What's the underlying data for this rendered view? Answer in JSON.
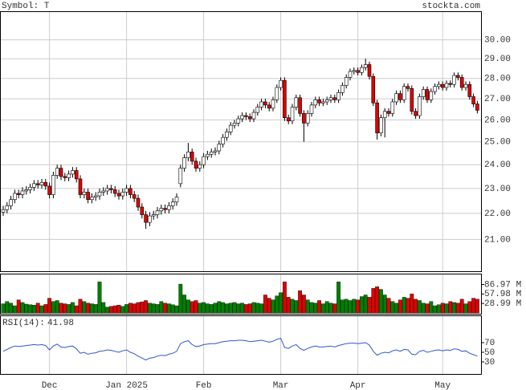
{
  "chart_data": {
    "type": "candlestick",
    "symbol_label": "Symbol: T",
    "site": "stockta.com",
    "log_scale": true,
    "grid": true,
    "up_color": "#ffffff",
    "down_color": "#e00000",
    "ylim": [
      19.84,
      31.57
    ],
    "yticks": [
      {
        "value": 21,
        "label": "21.00"
      },
      {
        "value": 22,
        "label": "22.00"
      },
      {
        "value": 23,
        "label": "23.00"
      },
      {
        "value": 24,
        "label": "24.00"
      },
      {
        "value": 25,
        "label": "25.00"
      },
      {
        "value": 26,
        "label": "26.00"
      },
      {
        "value": 27,
        "label": "27.00"
      },
      {
        "value": 28,
        "label": "28.00"
      },
      {
        "value": 29,
        "label": "29.00"
      },
      {
        "value": 30,
        "label": "30.00"
      }
    ],
    "xticks": [
      {
        "value": 12,
        "label": "Dec"
      },
      {
        "value": 32,
        "label": "Jan 2025"
      },
      {
        "value": 52,
        "label": "Feb"
      },
      {
        "value": 72,
        "label": "Mar"
      },
      {
        "value": 92,
        "label": "Apr"
      },
      {
        "value": 114,
        "label": "May"
      }
    ],
    "ohlc": [
      [
        22.05,
        22.3,
        21.9,
        22.15
      ],
      [
        22.15,
        22.45,
        22.0,
        22.3
      ],
      [
        22.3,
        22.7,
        22.15,
        22.55
      ],
      [
        22.55,
        22.95,
        22.4,
        22.8
      ],
      [
        22.8,
        22.95,
        22.6,
        22.75
      ],
      [
        22.75,
        23.05,
        22.6,
        22.9
      ],
      [
        22.9,
        23.1,
        22.75,
        22.95
      ],
      [
        22.95,
        23.2,
        22.8,
        23.05
      ],
      [
        23.05,
        23.35,
        22.9,
        23.2
      ],
      [
        23.2,
        23.35,
        23.0,
        23.15
      ],
      [
        23.15,
        23.4,
        23.0,
        23.25
      ],
      [
        23.25,
        23.4,
        22.95,
        23.1
      ],
      [
        23.1,
        23.25,
        22.6,
        22.75
      ],
      [
        22.75,
        23.7,
        22.6,
        23.55
      ],
      [
        23.55,
        24.0,
        23.4,
        23.85
      ],
      [
        23.85,
        24.0,
        23.35,
        23.5
      ],
      [
        23.5,
        23.65,
        23.3,
        23.45
      ],
      [
        23.45,
        23.75,
        23.3,
        23.6
      ],
      [
        23.6,
        23.9,
        23.45,
        23.75
      ],
      [
        23.75,
        23.9,
        23.25,
        23.4
      ],
      [
        23.4,
        23.55,
        22.6,
        22.75
      ],
      [
        22.75,
        23.0,
        22.6,
        22.85
      ],
      [
        22.85,
        23.0,
        22.4,
        22.55
      ],
      [
        22.55,
        22.8,
        22.4,
        22.65
      ],
      [
        22.65,
        22.85,
        22.5,
        22.7
      ],
      [
        22.7,
        23.0,
        22.55,
        22.85
      ],
      [
        22.85,
        23.05,
        22.7,
        22.9
      ],
      [
        22.9,
        23.15,
        22.75,
        23.0
      ],
      [
        23.0,
        23.15,
        22.8,
        22.95
      ],
      [
        22.95,
        23.1,
        22.65,
        22.8
      ],
      [
        22.8,
        22.95,
        22.55,
        22.7
      ],
      [
        22.7,
        23.0,
        22.55,
        22.85
      ],
      [
        22.85,
        23.15,
        22.7,
        23.0
      ],
      [
        23.0,
        23.15,
        22.6,
        22.75
      ],
      [
        22.75,
        22.9,
        22.45,
        22.6
      ],
      [
        22.6,
        22.75,
        22.1,
        22.25
      ],
      [
        22.25,
        22.4,
        21.8,
        21.95
      ],
      [
        21.95,
        22.1,
        21.4,
        21.65
      ],
      [
        21.65,
        22.05,
        21.5,
        21.9
      ],
      [
        21.9,
        22.1,
        21.75,
        21.95
      ],
      [
        21.95,
        22.25,
        21.8,
        22.1
      ],
      [
        22.1,
        22.35,
        21.95,
        22.2
      ],
      [
        22.2,
        22.35,
        22.0,
        22.15
      ],
      [
        22.15,
        22.45,
        22.0,
        22.3
      ],
      [
        22.3,
        22.6,
        22.15,
        22.45
      ],
      [
        22.45,
        22.8,
        22.3,
        22.65
      ],
      [
        23.2,
        24.0,
        23.05,
        23.85
      ],
      [
        23.85,
        24.45,
        23.7,
        24.3
      ],
      [
        24.3,
        24.95,
        24.15,
        24.55
      ],
      [
        24.55,
        24.7,
        24.0,
        24.15
      ],
      [
        24.15,
        24.3,
        23.7,
        23.85
      ],
      [
        23.85,
        24.15,
        23.7,
        24.0
      ],
      [
        24.0,
        24.5,
        23.85,
        24.35
      ],
      [
        24.35,
        24.6,
        24.2,
        24.45
      ],
      [
        24.45,
        24.7,
        24.3,
        24.55
      ],
      [
        24.55,
        24.75,
        24.4,
        24.6
      ],
      [
        24.6,
        25.05,
        24.45,
        24.9
      ],
      [
        24.9,
        25.35,
        24.75,
        25.2
      ],
      [
        25.2,
        25.6,
        25.05,
        25.45
      ],
      [
        25.45,
        25.9,
        25.3,
        25.75
      ],
      [
        25.75,
        26.0,
        25.6,
        25.85
      ],
      [
        25.85,
        26.2,
        25.7,
        26.05
      ],
      [
        26.05,
        26.35,
        25.9,
        26.2
      ],
      [
        26.2,
        26.35,
        26.0,
        26.15
      ],
      [
        26.15,
        26.3,
        25.9,
        26.05
      ],
      [
        26.05,
        26.5,
        25.9,
        26.35
      ],
      [
        26.35,
        26.75,
        26.2,
        26.6
      ],
      [
        26.6,
        27.0,
        26.45,
        26.85
      ],
      [
        26.85,
        27.0,
        26.55,
        26.7
      ],
      [
        26.7,
        26.85,
        26.4,
        26.55
      ],
      [
        26.55,
        27.1,
        26.4,
        26.95
      ],
      [
        26.95,
        27.7,
        26.8,
        27.55
      ],
      [
        27.55,
        28.05,
        27.4,
        27.9
      ],
      [
        27.9,
        28.05,
        25.95,
        26.1
      ],
      [
        26.1,
        26.25,
        25.8,
        25.95
      ],
      [
        25.95,
        26.75,
        25.8,
        26.6
      ],
      [
        26.6,
        27.2,
        26.45,
        27.05
      ],
      [
        27.05,
        27.2,
        26.15,
        26.3
      ],
      [
        26.3,
        26.45,
        25.0,
        25.85
      ],
      [
        25.85,
        26.45,
        25.7,
        26.3
      ],
      [
        26.3,
        26.85,
        26.15,
        26.7
      ],
      [
        26.7,
        27.1,
        26.55,
        26.95
      ],
      [
        26.95,
        27.1,
        26.65,
        26.8
      ],
      [
        26.8,
        27.0,
        26.65,
        26.85
      ],
      [
        26.85,
        27.1,
        26.7,
        26.95
      ],
      [
        26.95,
        27.2,
        26.8,
        27.05
      ],
      [
        27.05,
        27.2,
        26.8,
        26.95
      ],
      [
        26.95,
        27.45,
        26.8,
        27.3
      ],
      [
        27.3,
        27.8,
        27.15,
        27.65
      ],
      [
        27.65,
        28.2,
        27.5,
        28.05
      ],
      [
        28.05,
        28.5,
        27.9,
        28.35
      ],
      [
        28.35,
        28.55,
        28.2,
        28.4
      ],
      [
        28.4,
        28.55,
        28.15,
        28.3
      ],
      [
        28.3,
        28.7,
        28.15,
        28.55
      ],
      [
        28.55,
        29.0,
        28.4,
        28.7
      ],
      [
        28.7,
        28.85,
        27.95,
        28.1
      ],
      [
        28.1,
        28.25,
        26.65,
        26.8
      ],
      [
        26.8,
        26.95,
        25.1,
        25.4
      ],
      [
        25.4,
        26.25,
        25.25,
        26.1
      ],
      [
        26.1,
        26.55,
        25.2,
        26.4
      ],
      [
        26.4,
        26.55,
        26.15,
        26.3
      ],
      [
        26.3,
        27.0,
        26.15,
        26.85
      ],
      [
        26.85,
        27.4,
        26.7,
        27.25
      ],
      [
        27.25,
        27.4,
        26.8,
        26.95
      ],
      [
        26.95,
        27.75,
        26.8,
        27.6
      ],
      [
        27.6,
        27.75,
        27.35,
        27.5
      ],
      [
        27.5,
        27.65,
        26.25,
        26.4
      ],
      [
        26.4,
        26.55,
        26.05,
        26.2
      ],
      [
        26.2,
        27.25,
        26.05,
        27.1
      ],
      [
        27.1,
        27.6,
        26.95,
        27.45
      ],
      [
        27.45,
        27.6,
        26.8,
        26.95
      ],
      [
        26.95,
        27.5,
        26.8,
        27.35
      ],
      [
        27.35,
        27.75,
        27.2,
        27.6
      ],
      [
        27.6,
        27.85,
        27.45,
        27.7
      ],
      [
        27.7,
        27.85,
        27.4,
        27.55
      ],
      [
        27.55,
        27.9,
        27.4,
        27.75
      ],
      [
        27.75,
        27.9,
        27.55,
        27.7
      ],
      [
        27.7,
        28.3,
        27.55,
        28.15
      ],
      [
        28.15,
        28.3,
        27.9,
        28.05
      ],
      [
        28.05,
        28.2,
        27.4,
        27.55
      ],
      [
        27.55,
        27.85,
        27.4,
        27.7
      ],
      [
        27.7,
        27.85,
        26.95,
        27.1
      ],
      [
        27.1,
        27.25,
        26.6,
        26.75
      ],
      [
        26.75,
        26.9,
        26.3,
        26.45
      ]
    ],
    "volume": {
      "up_color": "#008000",
      "down_color": "#e00000",
      "ylim": [
        0,
        120
      ],
      "yticks": [
        {
          "value": 86.97,
          "label": "86.97 M"
        },
        {
          "value": 57.98,
          "label": "57.98 M"
        },
        {
          "value": 28.99,
          "label": "28.99 M"
        }
      ],
      "values": [
        28,
        35,
        30,
        22,
        40,
        32,
        27,
        25,
        24,
        30,
        22,
        26,
        45,
        35,
        38,
        30,
        28,
        26,
        32,
        22,
        42,
        35,
        30,
        28,
        26,
        95,
        32,
        18,
        20,
        22,
        24,
        20,
        26,
        30,
        28,
        32,
        34,
        38,
        30,
        28,
        26,
        35,
        30,
        28,
        25,
        22,
        88,
        55,
        40,
        35,
        38,
        30,
        32,
        28,
        26,
        30,
        35,
        32,
        28,
        30,
        32,
        28,
        30,
        26,
        28,
        32,
        30,
        28,
        55,
        45,
        40,
        52,
        62,
        95,
        48,
        42,
        38,
        68,
        55,
        40,
        32,
        30,
        38,
        28,
        35,
        30,
        28,
        95,
        40,
        42,
        38,
        42,
        40,
        50,
        55,
        48,
        75,
        80,
        72,
        55,
        45,
        35,
        30,
        40,
        48,
        45,
        58,
        42,
        38,
        30,
        28,
        35,
        22,
        25,
        30,
        28,
        35,
        32,
        30,
        42,
        28,
        35,
        45,
        42
      ]
    },
    "rsi": {
      "label": "RSI(14):",
      "color": "#3355cc",
      "ylim": [
        5,
        125
      ],
      "yticks": [
        70,
        50,
        30
      ],
      "values": [
        52,
        56,
        60,
        63,
        62,
        63,
        64,
        65,
        66,
        65,
        66,
        64,
        55,
        63,
        67,
        61,
        60,
        62,
        63,
        57,
        48,
        50,
        46,
        48,
        49,
        52,
        53,
        55,
        54,
        52,
        50,
        53,
        55,
        50,
        47,
        42,
        38,
        34,
        38,
        39,
        42,
        44,
        43,
        46,
        48,
        52,
        68,
        72,
        74,
        66,
        62,
        63,
        66,
        67,
        68,
        68,
        70,
        72,
        73,
        74,
        74,
        75,
        75,
        74,
        72,
        73,
        74,
        75,
        73,
        71,
        73,
        77,
        79,
        60,
        58,
        63,
        66,
        58,
        54,
        58,
        61,
        63,
        61,
        61,
        62,
        63,
        61,
        64,
        66,
        68,
        69,
        69,
        68,
        69,
        70,
        65,
        52,
        44,
        48,
        50,
        49,
        53,
        55,
        52,
        56,
        55,
        46,
        45,
        52,
        54,
        50,
        52,
        54,
        55,
        53,
        55,
        54,
        57,
        56,
        52,
        53,
        48,
        45,
        41.98
      ]
    }
  }
}
